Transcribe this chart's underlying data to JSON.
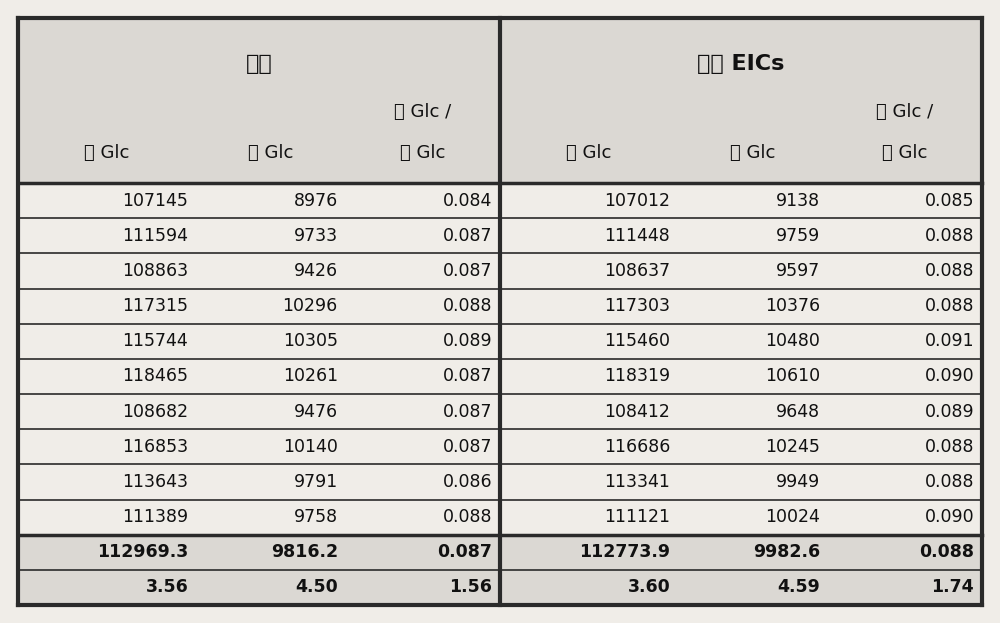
{
  "header_top": [
    "合计",
    "合计 EICs"
  ],
  "header_mid": [
    "有 Glc /",
    "有 Glc /"
  ],
  "header_bot": [
    "无 Glc",
    "有 Glc",
    "无 Glc",
    "无 Glc",
    "有 Glc",
    "无 Glc"
  ],
  "data_rows": [
    [
      "107145",
      "8976",
      "0.084",
      "107012",
      "9138",
      "0.085"
    ],
    [
      "111594",
      "9733",
      "0.087",
      "111448",
      "9759",
      "0.088"
    ],
    [
      "108863",
      "9426",
      "0.087",
      "108637",
      "9597",
      "0.088"
    ],
    [
      "117315",
      "10296",
      "0.088",
      "117303",
      "10376",
      "0.088"
    ],
    [
      "115744",
      "10305",
      "0.089",
      "115460",
      "10480",
      "0.091"
    ],
    [
      "118465",
      "10261",
      "0.087",
      "118319",
      "10610",
      "0.090"
    ],
    [
      "108682",
      "9476",
      "0.087",
      "108412",
      "9648",
      "0.089"
    ],
    [
      "116853",
      "10140",
      "0.087",
      "116686",
      "10245",
      "0.088"
    ],
    [
      "113643",
      "9791",
      "0.086",
      "113341",
      "9949",
      "0.088"
    ],
    [
      "111389",
      "9758",
      "0.088",
      "111121",
      "10024",
      "0.090"
    ]
  ],
  "mean_row": [
    "112969.3",
    "9816.2",
    "0.087",
    "112773.9",
    "9982.6",
    "0.088"
  ],
  "cv_row": [
    "3.56",
    "4.50",
    "1.56",
    "3.60",
    "4.59",
    "1.74"
  ],
  "bg_color": "#f0ede8",
  "header_bg": "#dbd8d3",
  "data_bg": "#f0ede8",
  "border_color": "#2a2a2a",
  "text_color": "#111111",
  "font_size": 12.5,
  "header_font_size": 16,
  "col_header_font_size": 13
}
